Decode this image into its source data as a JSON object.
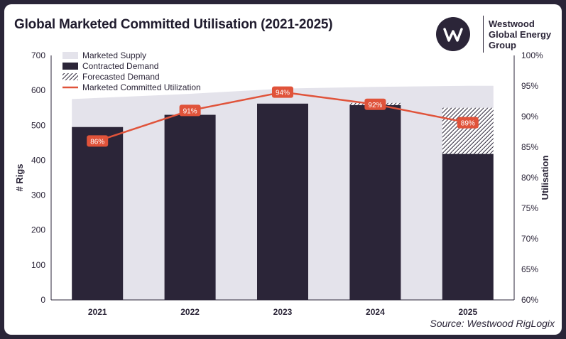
{
  "title": "Global Marketed Committed Utilisation (2021-2025)",
  "brand": {
    "logo_icon": "w-monogram-icon",
    "line1": "Westwood",
    "line2": "Global Energy",
    "line3": "Group"
  },
  "source": "Source: Westwood RigLogix",
  "colors": {
    "supply": "#e4e3eb",
    "contracted": "#2b2538",
    "forecast_hatch": "#2b2538",
    "utilization": "#e0533a",
    "label_text": "#ffffff"
  },
  "chart_data": {
    "type": "bar",
    "categories": [
      "2021",
      "2022",
      "2023",
      "2024",
      "2025"
    ],
    "ylabel": "# Rigs",
    "y2label": "Utilisation",
    "ylim": [
      0,
      700
    ],
    "yticks": [
      "0",
      "100",
      "200",
      "300",
      "400",
      "500",
      "600",
      "700"
    ],
    "y2lim": [
      60,
      100
    ],
    "y2ticks": [
      "60%",
      "65%",
      "70%",
      "75%",
      "80%",
      "85%",
      "90%",
      "95%",
      "100%"
    ],
    "legend_position": "top-left",
    "series": [
      {
        "name": "Marketed Supply",
        "kind": "area",
        "values": [
          575,
          590,
          605,
          610,
          613
        ]
      },
      {
        "name": "Contracted Demand",
        "kind": "bar",
        "values": [
          495,
          530,
          562,
          558,
          418
        ]
      },
      {
        "name": "Forecasted Demand",
        "kind": "bar-stacked-hatched",
        "values": [
          0,
          0,
          0,
          6,
          132
        ]
      },
      {
        "name": "Marketed Committed Utilization",
        "kind": "line",
        "axis": "right",
        "values": [
          86,
          91,
          94,
          92,
          89
        ],
        "labels": [
          "86%",
          "91%",
          "94%",
          "92%",
          "89%"
        ]
      }
    ]
  }
}
